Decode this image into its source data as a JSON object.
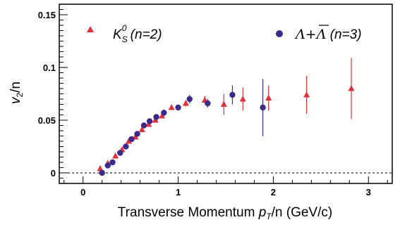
{
  "chart_data": {
    "type": "scatter",
    "xlabel_main": "Transverse Momentum ",
    "xlabel_var": "p",
    "xlabel_sub": "T",
    "xlabel_rest": "/n (GeV/c)",
    "ylabel_main": "v",
    "ylabel_sub": "2",
    "ylabel_rest": "/n",
    "xlim": [
      -0.25,
      3.25
    ],
    "ylim": [
      -0.01,
      0.16
    ],
    "xticks": [
      "0",
      "1",
      "2",
      "3"
    ],
    "yticks": [
      "0",
      "0.05",
      "0.1",
      "0.15"
    ],
    "legend_kshort": {
      "symbol": "K",
      "sub": "S",
      "sup": "0",
      "suffix": " (n=2)"
    },
    "legend_lambda": {
      "text": "Λ+Λ",
      "suffix": " (n=3)"
    },
    "colors": {
      "kshort": "#e0313a",
      "lambda": "#3b2a8a"
    },
    "series": [
      {
        "marker": "triangle",
        "points": [
          {
            "x": 0.18,
            "y": 0.004,
            "err": 0.003
          },
          {
            "x": 0.26,
            "y": 0.009,
            "err": 0.002
          },
          {
            "x": 0.34,
            "y": 0.016,
            "err": 0.002
          },
          {
            "x": 0.41,
            "y": 0.022,
            "err": 0.002
          },
          {
            "x": 0.48,
            "y": 0.03,
            "err": 0.002
          },
          {
            "x": 0.55,
            "y": 0.034,
            "err": 0.002
          },
          {
            "x": 0.62,
            "y": 0.041,
            "err": 0.002
          },
          {
            "x": 0.69,
            "y": 0.046,
            "err": 0.002
          },
          {
            "x": 0.76,
            "y": 0.05,
            "err": 0.002
          },
          {
            "x": 0.83,
            "y": 0.054,
            "err": 0.002
          },
          {
            "x": 0.93,
            "y": 0.062,
            "err": 0.002
          },
          {
            "x": 1.08,
            "y": 0.066,
            "err": 0.003
          },
          {
            "x": 1.28,
            "y": 0.069,
            "err": 0.004
          },
          {
            "x": 1.48,
            "y": 0.065,
            "err": 0.01
          },
          {
            "x": 1.68,
            "y": 0.07,
            "err": 0.011
          },
          {
            "x": 1.95,
            "y": 0.071,
            "err": 0.012
          },
          {
            "x": 2.35,
            "y": 0.074,
            "err": 0.018
          },
          {
            "x": 2.82,
            "y": 0.08,
            "err": 0.029
          }
        ]
      },
      {
        "marker": "circle",
        "points": [
          {
            "x": 0.2,
            "y": 0.0,
            "err": 0.002
          },
          {
            "x": 0.26,
            "y": 0.007,
            "err": 0.002
          },
          {
            "x": 0.31,
            "y": 0.01,
            "err": 0.002
          },
          {
            "x": 0.39,
            "y": 0.019,
            "err": 0.002
          },
          {
            "x": 0.45,
            "y": 0.025,
            "err": 0.002
          },
          {
            "x": 0.51,
            "y": 0.032,
            "err": 0.002
          },
          {
            "x": 0.57,
            "y": 0.037,
            "err": 0.002
          },
          {
            "x": 0.64,
            "y": 0.045,
            "err": 0.002
          },
          {
            "x": 0.7,
            "y": 0.049,
            "err": 0.002
          },
          {
            "x": 0.77,
            "y": 0.053,
            "err": 0.002
          },
          {
            "x": 0.85,
            "y": 0.057,
            "err": 0.003
          },
          {
            "x": 1.0,
            "y": 0.062,
            "err": 0.002
          },
          {
            "x": 1.12,
            "y": 0.07,
            "err": 0.004
          },
          {
            "x": 1.31,
            "y": 0.066,
            "err": 0.004
          },
          {
            "x": 1.57,
            "y": 0.074,
            "err": 0.009
          },
          {
            "x": 1.89,
            "y": 0.062,
            "err": 0.027
          }
        ]
      }
    ]
  }
}
